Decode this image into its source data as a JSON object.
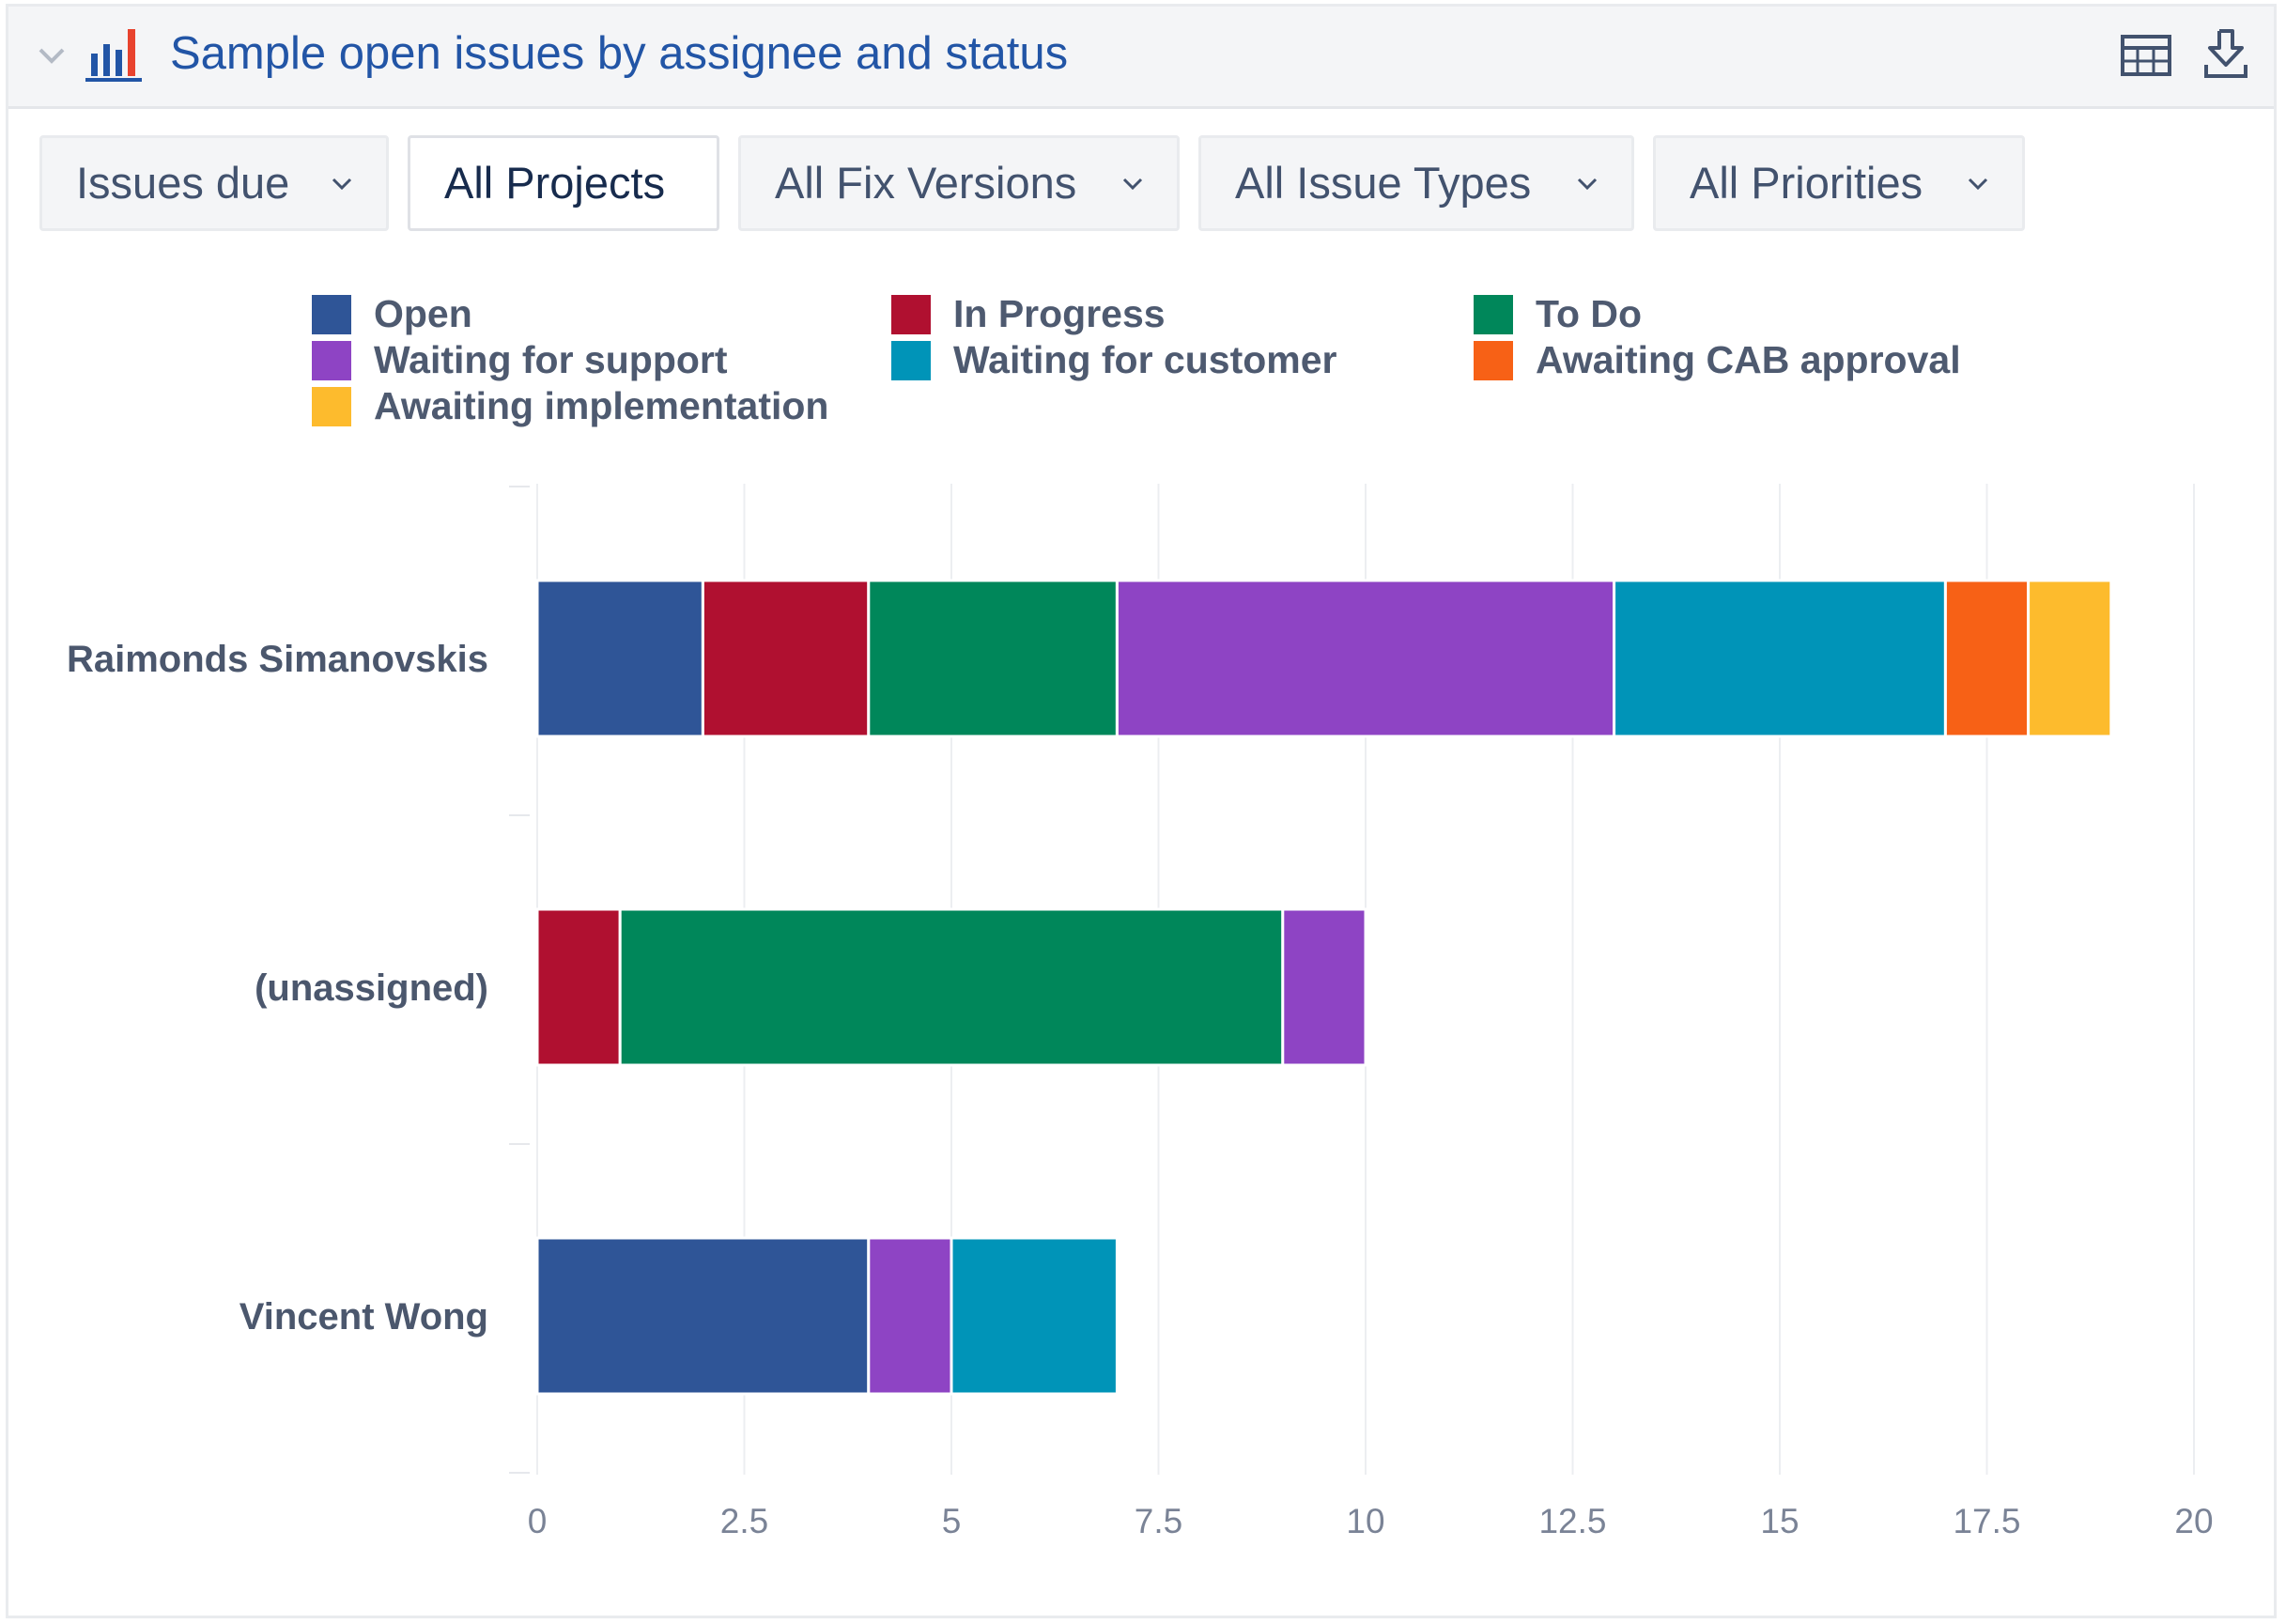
{
  "header": {
    "title": "Sample open issues by assignee and status",
    "icons": {
      "collapse": "chevron-down-icon",
      "chart": "bar-chart-icon",
      "table": "table-icon",
      "download": "download-icon"
    }
  },
  "filters": [
    {
      "label": "Issues due",
      "has_dropdown": true,
      "active": false
    },
    {
      "label": "All Projects",
      "has_dropdown": false,
      "active": true
    },
    {
      "label": "All Fix Versions",
      "has_dropdown": true,
      "active": false
    },
    {
      "label": "All Issue Types",
      "has_dropdown": true,
      "active": false
    },
    {
      "label": "All Priorities",
      "has_dropdown": true,
      "active": false
    }
  ],
  "colors": {
    "title": "#2255a6",
    "grid": "#eceef1"
  },
  "chart_data": {
    "type": "bar",
    "orientation": "horizontal",
    "stacked": true,
    "categories": [
      "Raimonds Simanovskis",
      "(unassigned)",
      "Vincent Wong"
    ],
    "series": [
      {
        "name": "Open",
        "color": "#2f5597",
        "values": [
          2,
          0,
          4
        ]
      },
      {
        "name": "In Progress",
        "color": "#b01030",
        "values": [
          2,
          1,
          0
        ]
      },
      {
        "name": "To Do",
        "color": "#00875a",
        "values": [
          3,
          8,
          0
        ]
      },
      {
        "name": "Waiting for support",
        "color": "#8e44c4",
        "values": [
          6,
          1,
          1
        ]
      },
      {
        "name": "Waiting for customer",
        "color": "#0094b8",
        "values": [
          4,
          0,
          2
        ]
      },
      {
        "name": "Awaiting CAB approval",
        "color": "#f76116",
        "values": [
          1,
          0,
          0
        ]
      },
      {
        "name": "Awaiting implementation",
        "color": "#fdbb2d",
        "values": [
          1,
          0,
          0
        ]
      }
    ],
    "xlim": [
      0,
      20
    ],
    "xticks": [
      0,
      2.5,
      5,
      7.5,
      10,
      12.5,
      15,
      17.5,
      20
    ],
    "grid": true,
    "legend_position": "top"
  }
}
